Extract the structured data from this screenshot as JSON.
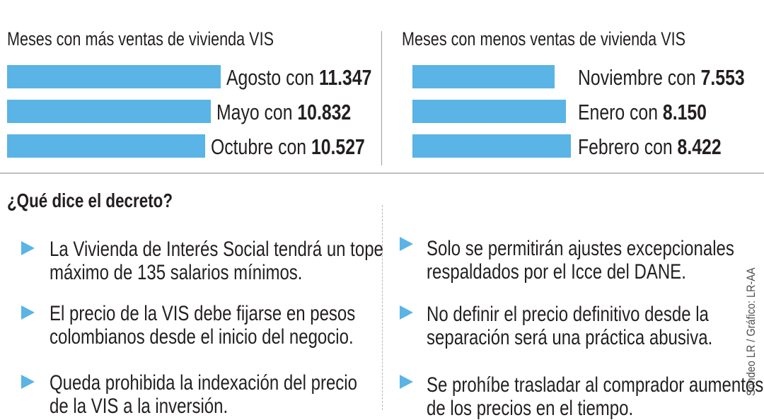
{
  "header_cut_text": "",
  "chart_data": [
    {
      "type": "bar",
      "orientation": "horizontal",
      "title": "Meses con más ventas de vivienda VIS",
      "categories": [
        "Agosto",
        "Mayo",
        "Octubre"
      ],
      "values": [
        11347,
        10832,
        10527
      ],
      "labels": [
        {
          "prefix": "Agosto con ",
          "value": "11.347"
        },
        {
          "prefix": "Mayo con ",
          "value": "10.832"
        },
        {
          "prefix": "Octubre con ",
          "value": "10.527"
        }
      ],
      "bar_color": "#5ab4e5"
    },
    {
      "type": "bar",
      "orientation": "horizontal",
      "title": "Meses con menos ventas de vivienda VIS",
      "categories": [
        "Noviembre",
        "Enero",
        "Febrero"
      ],
      "values": [
        7553,
        8150,
        8422
      ],
      "labels": [
        {
          "prefix": "Noviembre con ",
          "value": "7.553"
        },
        {
          "prefix": "Enero con ",
          "value": "8.150"
        },
        {
          "prefix": "Febrero con ",
          "value": "8.422"
        }
      ],
      "bar_color": "#5ab4e5"
    }
  ],
  "decree": {
    "title": "¿Qué dice el decreto?",
    "left_items": [
      {
        "line1": "La Vivienda de Interés Social tendrá un tope",
        "line2": "máximo de 135 salarios mínimos."
      },
      {
        "line1": "El precio de la VIS debe fijarse en pesos",
        "line2": "colombianos desde el inicio del negocio."
      },
      {
        "line1": "Queda prohibida la indexación del precio",
        "line2": "de la VIS a la inversión."
      }
    ],
    "right_items": [
      {
        "line1": "Solo se permitirán ajustes excepcionales",
        "line2": "respaldados por el Icce del DANE."
      },
      {
        "line1": "No definir el precio definitivo desde la",
        "line2": "separación será una práctica abusiva."
      },
      {
        "line1": "Se prohíbe trasladar al comprador aumentos",
        "line2": "de los precios en el tiempo."
      }
    ],
    "bullet_color": "#5ab4e5"
  },
  "credit": "Sondeo LR / Gráfico: LR-AA"
}
